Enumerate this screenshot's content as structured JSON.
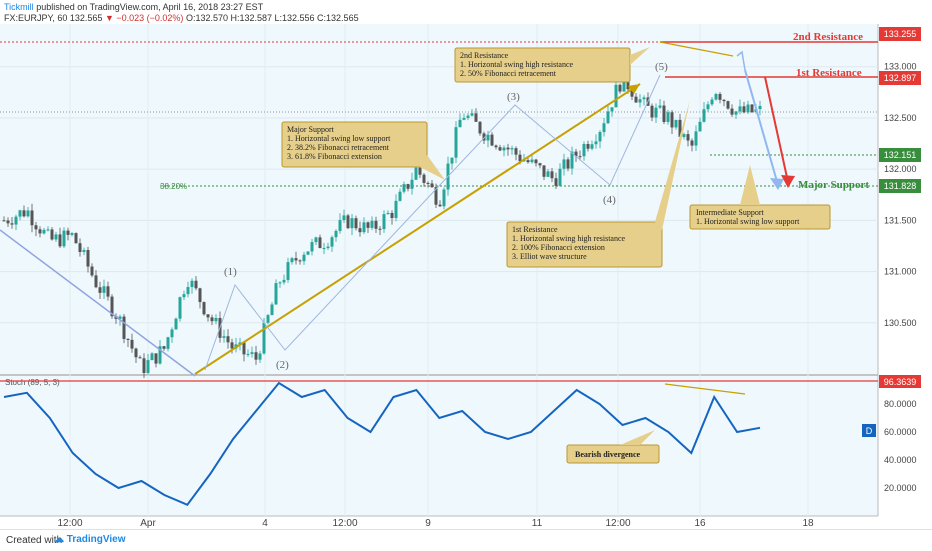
{
  "header": {
    "publisher": "Tickmill",
    "published_text": "published on TradingView.com, April 16, 2018 23:27 EST",
    "symbol": "FX:EURJPY, 60",
    "last": "132.565",
    "change": "▼ −0.023 (−0.02%)",
    "ohlc": "O:132.570 H:132.587 L:132.556 C:132.565"
  },
  "footer": {
    "created_with": "Created with",
    "brand": "TradingView"
  },
  "levels": {
    "second_resistance": {
      "label": "2nd Resistance",
      "price": "133.255"
    },
    "first_resistance": {
      "label": "1st Resistance",
      "price": "132.897"
    },
    "intermediate": {
      "price": "132.151"
    },
    "major_support": {
      "label": "Major Support",
      "price": "131.828"
    },
    "fib_label": "38.20%",
    "current_price": "132.565"
  },
  "waves": [
    "(1)",
    "(2)",
    "(3)",
    "(4)",
    "(5)"
  ],
  "annotations": {
    "second_res_box": [
      "2nd Resistance",
      "1. Horizontal swing high resistance",
      "2. 50% Fibonacci retracement"
    ],
    "major_support_box": [
      "Major Support",
      "1. Horizontal swing low support",
      "2. 38.2% Fibonacci retracement",
      "3. 61.8% Fibonacci extension"
    ],
    "first_res_box": [
      "1st Resistance",
      "1. Horizontal swing high resistance",
      "2. 100% Fibonacci extension",
      "3. Elliot wave structure"
    ],
    "intermediate_box": [
      "Intermediate Support",
      "1. Horizontal swing low support"
    ],
    "bearish_box": [
      "Bearish divergence"
    ]
  },
  "stoch": {
    "label": "Stoch (89, 5, 3)",
    "level": "96.3639",
    "d_badge": "D"
  },
  "colors": {
    "resistance": "#e53935",
    "support": "#388e3c",
    "trend": "#c8a000",
    "stoch": "#1565c0",
    "box_fill": "#e6cf8a",
    "up": "#26a69a",
    "down": "#555555"
  },
  "chart_data": {
    "type": "candlestick",
    "title": "FX:EURJPY, 60",
    "price_ticks": [
      "133.000",
      "132.500",
      "132.000",
      "131.500",
      "131.000",
      "130.500"
    ],
    "stoch_ticks": [
      "80.0000",
      "60.0000",
      "40.0000",
      "20.0000"
    ],
    "x_ticks": [
      "12:00",
      "Apr",
      "4",
      "12:00",
      "9",
      "11",
      "12:00",
      "16",
      "18"
    ],
    "close_path": [
      [
        "start",
        131.5
      ],
      [
        "",
        131.6
      ],
      [
        "",
        131.3
      ],
      [
        "12:00",
        131.35
      ],
      [
        "",
        130.9
      ],
      [
        "Apr",
        130.55
      ],
      [
        "",
        130.05
      ],
      [
        "",
        130.25
      ],
      [
        "(1)",
        130.95
      ],
      [
        "",
        130.55
      ],
      [
        "4",
        130.25
      ],
      [
        "(2)",
        130.15
      ],
      [
        "",
        130.9
      ],
      [
        "",
        131.2
      ],
      [
        "12:00",
        131.3
      ],
      [
        "",
        131.5
      ],
      [
        "",
        131.4
      ],
      [
        "9",
        131.6
      ],
      [
        "",
        132.0
      ],
      [
        "",
        131.7
      ],
      [
        "(3)",
        132.55
      ],
      [
        "11",
        132.35
      ],
      [
        "",
        132.2
      ],
      [
        "",
        132.05
      ],
      [
        "(4)",
        131.9
      ],
      [
        "12:00",
        132.15
      ],
      [
        "",
        132.4
      ],
      [
        "(5)",
        132.9
      ],
      [
        "",
        132.6
      ],
      [
        "16",
        132.5
      ],
      [
        "",
        132.2
      ],
      [
        "",
        132.8
      ],
      [
        "",
        132.55
      ],
      [
        "last",
        132.565
      ]
    ],
    "stoch_path": [
      85,
      88,
      70,
      45,
      30,
      20,
      25,
      15,
      8,
      30,
      55,
      75,
      95,
      85,
      90,
      70,
      60,
      85,
      90,
      70,
      75,
      60,
      55,
      60,
      75,
      90,
      80,
      65,
      70,
      60,
      45,
      85,
      60,
      63
    ]
  }
}
